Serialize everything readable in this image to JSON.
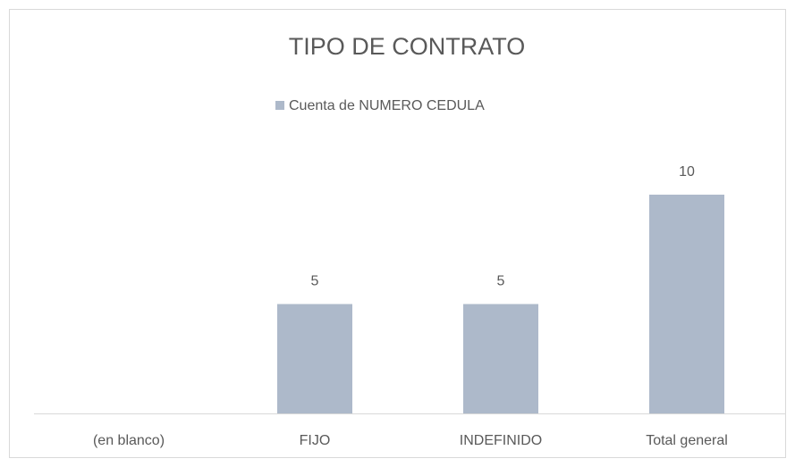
{
  "chart_data": {
    "type": "bar",
    "title": "TIPO DE CONTRATO",
    "categories": [
      "(en blanco)",
      "FIJO",
      "INDEFINIDO",
      "Total general"
    ],
    "series": [
      {
        "name": "Cuenta de NUMERO CEDULA",
        "color": "#adb9ca",
        "values": [
          null,
          5,
          5,
          10
        ]
      }
    ],
    "legend": "top"
  }
}
